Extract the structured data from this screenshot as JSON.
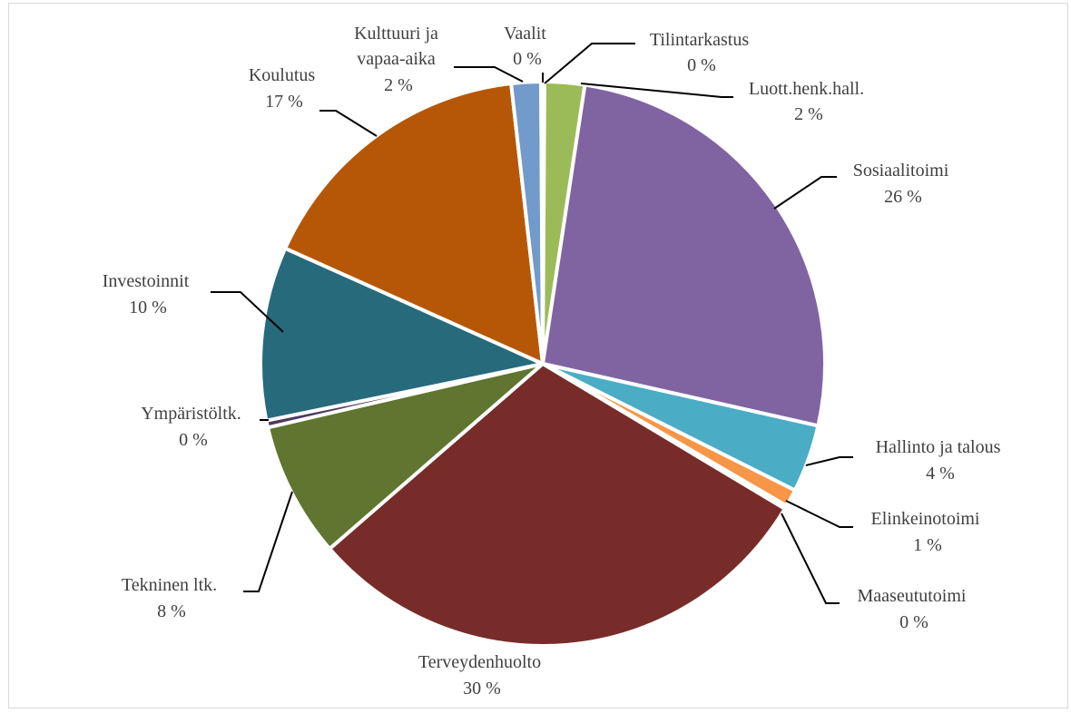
{
  "chart_data": {
    "type": "pie",
    "title": "",
    "slices": [
      {
        "name": "Tilintarkastus",
        "value": 0.1,
        "label_value": "0 %",
        "color": "#4f81bd"
      },
      {
        "name": "Luott.henk.hall.",
        "value": 2.3,
        "label_value": "2 %",
        "color": "#9bbb59"
      },
      {
        "name": "Sosiaalitoimi",
        "value": 26.3,
        "label_value": "26 %",
        "color": "#8064a2"
      },
      {
        "name": "Hallinto ja talous",
        "value": 3.9,
        "label_value": "4 %",
        "color": "#4bacc6"
      },
      {
        "name": "Elinkeinotoimi",
        "value": 1.0,
        "label_value": "1 %",
        "color": "#f79646"
      },
      {
        "name": "Maaseututoimi",
        "value": 0.2,
        "label_value": "0 %",
        "color": "#2c4d75"
      },
      {
        "name": "Terveydenhuolto",
        "value": 30.2,
        "label_value": "30 %",
        "color": "#772c2a"
      },
      {
        "name": "Tekninen ltk.",
        "value": 7.8,
        "label_value": "8 %",
        "color": "#5f7530"
      },
      {
        "name": "Ympäristöltk.",
        "value": 0.4,
        "label_value": "0 %",
        "color": "#4d3b62"
      },
      {
        "name": "Investoinnit",
        "value": 10.0,
        "label_value": "10 %",
        "color": "#276a7c"
      },
      {
        "name": "Koulutus",
        "value": 16.6,
        "label_value": "17 %",
        "color": "#b65708"
      },
      {
        "name": "Kulttuuri ja vapaa-aika",
        "value": 1.7,
        "label_value": "2 %",
        "color": "#729aca"
      },
      {
        "name": "Vaalit",
        "value": 0.1,
        "label_value": "0 %",
        "color": "#b3cb8a"
      }
    ]
  },
  "labels": [
    {
      "line1": "Tilintarkastus",
      "line2": "0 %"
    },
    {
      "line1": "Luott.henk.hall.",
      "line2": "2 %"
    },
    {
      "line1": "Sosiaalitoimi",
      "line2": "26 %"
    },
    {
      "line1": "Hallinto  ja talous",
      "line2": "4 %"
    },
    {
      "line1": "Elinkeinotoimi",
      "line2": "1 %"
    },
    {
      "line1": "Maaseututoimi",
      "line2": "0 %"
    },
    {
      "line1": "Terveydenhuolto",
      "line2": "30 %"
    },
    {
      "line1": "Tekninen ltk.",
      "line2": "8 %"
    },
    {
      "line1": "Ympäristöltk.",
      "line2": "0 %"
    },
    {
      "line1": "Investoinnit",
      "line2": "10 %"
    },
    {
      "line1": "Koulutus",
      "line2": "17 %"
    },
    {
      "line1": "Kulttuuri  ja",
      "line2": "vapaa-aika",
      "line3": "2 %"
    },
    {
      "line1": "Vaalit",
      "line2": "0 %"
    }
  ]
}
